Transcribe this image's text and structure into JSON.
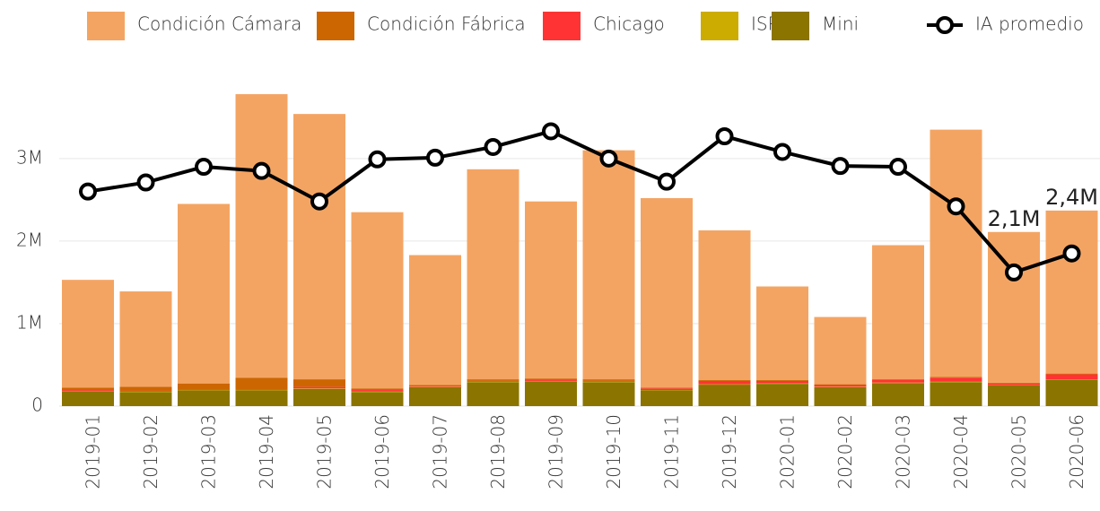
{
  "chart_data": {
    "type": "bar",
    "stacked": true,
    "categories": [
      "2019-01",
      "2019-02",
      "2019-03",
      "2019-04",
      "2019-05",
      "2019-06",
      "2019-07",
      "2019-08",
      "2019-09",
      "2019-10",
      "2019-11",
      "2019-12",
      "2020-01",
      "2020-02",
      "2020-03",
      "2020-04",
      "2020-05",
      "2020-06"
    ],
    "series": [
      {
        "name": "Condición Cámara",
        "color": "#f4a462",
        "values": [
          1305000,
          1155000,
          2175000,
          3435000,
          3215000,
          2135000,
          1575000,
          2545000,
          2145000,
          2775000,
          2295000,
          1815000,
          1135000,
          815000,
          1625000,
          2995000,
          1825000,
          1975000
        ]
      },
      {
        "name": "Condición Fábrica",
        "color": "#cc6600",
        "values": [
          30000,
          50000,
          70000,
          140000,
          90000,
          20000,
          10000,
          20000,
          20000,
          20000,
          10000,
          10000,
          10000,
          10000,
          10000,
          10000,
          10000,
          10000
        ]
      },
      {
        "name": "Chicago",
        "color": "#ff3333",
        "values": [
          10000,
          10000,
          10000,
          10000,
          20000,
          20000,
          10000,
          10000,
          10000,
          10000,
          20000,
          40000,
          30000,
          20000,
          30000,
          50000,
          20000,
          60000
        ]
      },
      {
        "name": "ISR",
        "color": "#ccac00",
        "values": [
          5000,
          5000,
          5000,
          5000,
          5000,
          5000,
          5000,
          5000,
          5000,
          5000,
          5000,
          5000,
          5000,
          5000,
          5000,
          5000,
          5000,
          5000
        ]
      },
      {
        "name": "Mini",
        "color": "#8b7400",
        "values": [
          180000,
          170000,
          190000,
          190000,
          210000,
          170000,
          230000,
          290000,
          300000,
          290000,
          190000,
          260000,
          270000,
          230000,
          280000,
          290000,
          250000,
          320000
        ]
      },
      {
        "name": "IA promedio",
        "type": "line",
        "color": "#000000",
        "values": [
          2600000,
          2710000,
          2900000,
          2850000,
          2480000,
          2990000,
          3010000,
          3140000,
          3330000,
          3000000,
          2720000,
          3270000,
          3080000,
          2910000,
          2900000,
          2420000,
          1620000,
          1850000
        ]
      }
    ],
    "annotations": [
      {
        "text": "2,1M",
        "x": "2020-05"
      },
      {
        "text": "2,4M",
        "x": "2020-06"
      }
    ],
    "ylim": [
      0,
      3900000
    ],
    "yticks": [
      0,
      {
        "value": 1000000,
        "label": "1M"
      },
      {
        "value": 2000000,
        "label": "2M"
      },
      {
        "value": 3000000,
        "label": "3M"
      }
    ],
    "grid": true,
    "legend": "top"
  }
}
